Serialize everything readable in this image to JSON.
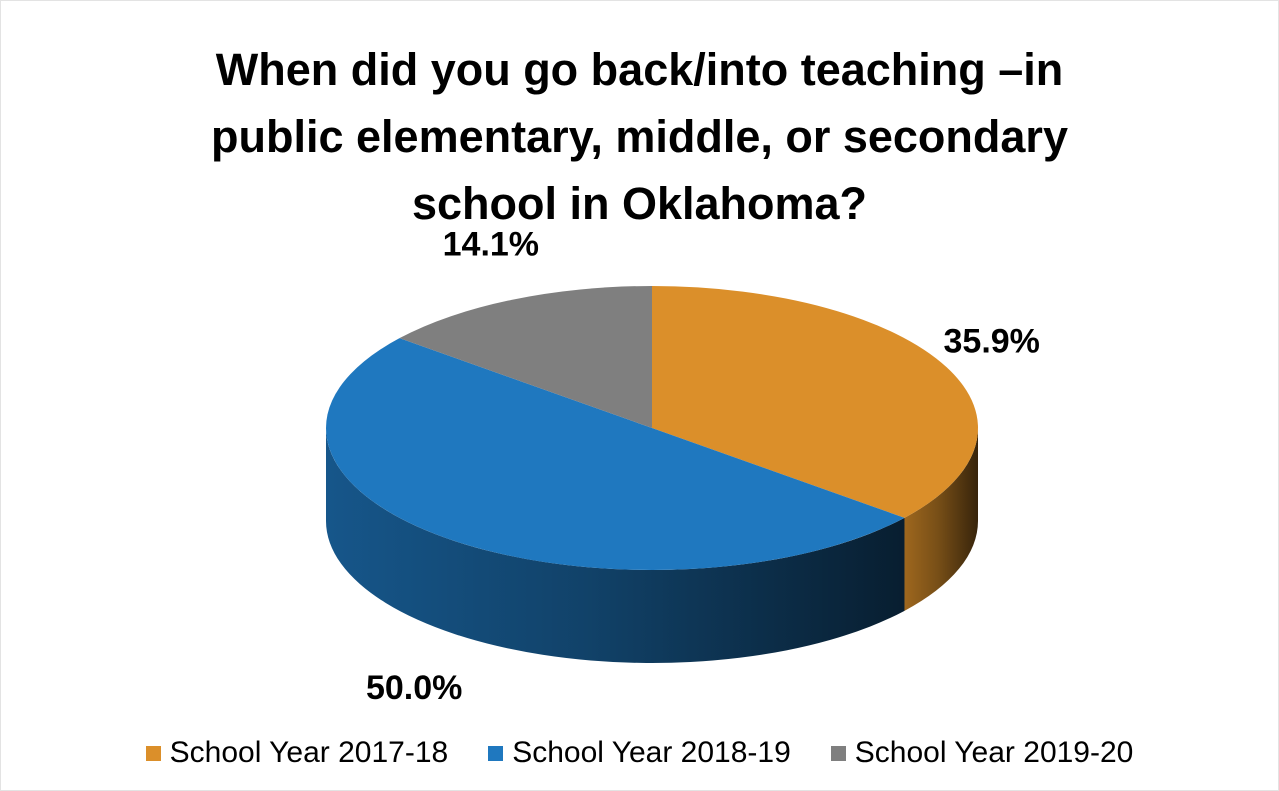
{
  "chart_data": {
    "type": "pie",
    "title_lines": [
      "When did you go back/into teaching –in",
      "public elementary, middle, or secondary",
      "school in Oklahoma?"
    ],
    "slices": [
      {
        "name": "School Year 2017-18",
        "value": 35.9,
        "label": "35.9%",
        "color": "#DB8F2A"
      },
      {
        "name": "School Year 2018-19",
        "value": 50.0,
        "label": "50.0%",
        "color": "#1F78BF"
      },
      {
        "name": "School Year 2019-20",
        "value": 14.1,
        "label": "14.1%",
        "color": "#7F7F7F"
      }
    ],
    "legend_position": "bottom",
    "style": "3d"
  }
}
